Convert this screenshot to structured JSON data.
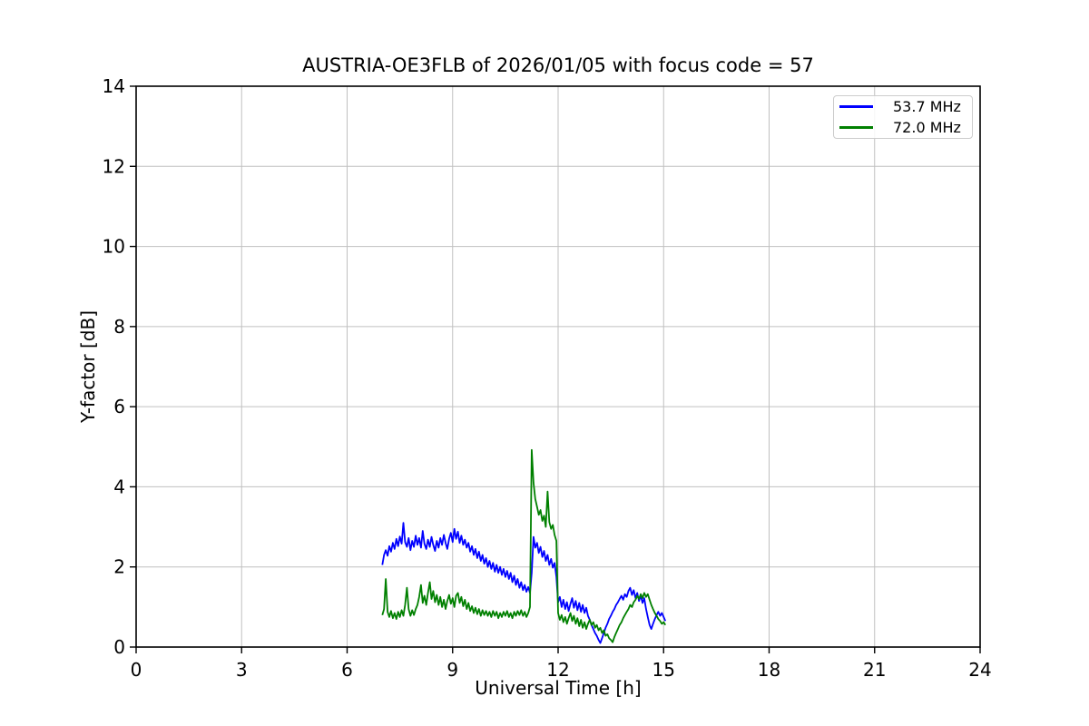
{
  "chart_data": {
    "type": "line",
    "title": "AUSTRIA-OE3FLB of 2026/01/05 with focus code = 57",
    "xlabel": "Universal Time [h]",
    "ylabel": "Y-factor [dB]",
    "xlim": [
      0,
      24
    ],
    "ylim": [
      0,
      14
    ],
    "xticks": [
      0,
      3,
      6,
      9,
      12,
      15,
      18,
      21,
      24
    ],
    "yticks": [
      0,
      2,
      4,
      6,
      8,
      10,
      12,
      14
    ],
    "grid": true,
    "grid_color": "#c0c0c0",
    "legend_position": "upper right",
    "x_start": 7.0,
    "x_step": 0.05,
    "series": [
      {
        "name": "53.7 MHz",
        "color": "#0000ff",
        "values": [
          2.05,
          2.3,
          2.42,
          2.28,
          2.52,
          2.38,
          2.6,
          2.45,
          2.7,
          2.52,
          2.76,
          2.58,
          3.1,
          2.62,
          2.5,
          2.72,
          2.42,
          2.65,
          2.5,
          2.78,
          2.55,
          2.72,
          2.48,
          2.9,
          2.58,
          2.45,
          2.68,
          2.5,
          2.75,
          2.55,
          2.4,
          2.65,
          2.48,
          2.72,
          2.55,
          2.8,
          2.6,
          2.45,
          2.7,
          2.85,
          2.62,
          2.95,
          2.7,
          2.88,
          2.6,
          2.78,
          2.55,
          2.68,
          2.48,
          2.6,
          2.38,
          2.52,
          2.3,
          2.45,
          2.22,
          2.38,
          2.15,
          2.3,
          2.08,
          2.22,
          2.0,
          2.15,
          1.95,
          2.1,
          1.88,
          2.05,
          1.85,
          2.0,
          1.8,
          1.95,
          1.75,
          1.9,
          1.7,
          1.85,
          1.62,
          1.78,
          1.55,
          1.7,
          1.48,
          1.62,
          1.42,
          1.55,
          1.38,
          1.5,
          1.35,
          1.85,
          2.75,
          2.48,
          2.6,
          2.35,
          2.5,
          2.25,
          2.4,
          2.15,
          2.3,
          2.05,
          2.2,
          1.98,
          2.1,
          1.75,
          1.12,
          1.25,
          1.0,
          1.18,
          0.95,
          1.12,
          0.9,
          1.08,
          1.22,
          0.98,
          1.15,
          0.92,
          1.1,
          0.88,
          1.05,
          0.85,
          0.98,
          0.78,
          0.68,
          0.55,
          0.45,
          0.35,
          0.28,
          0.18,
          0.1,
          0.22,
          0.35,
          0.48,
          0.58,
          0.7,
          0.78,
          0.88,
          0.95,
          1.05,
          1.12,
          1.2,
          1.28,
          1.18,
          1.32,
          1.25,
          1.4,
          1.48,
          1.3,
          1.42,
          1.22,
          1.35,
          1.15,
          1.28,
          1.1,
          1.22,
          0.95,
          0.75,
          0.55,
          0.45,
          0.58,
          0.7,
          0.8,
          0.88,
          0.78,
          0.85,
          0.75,
          0.65
        ]
      },
      {
        "name": "72.0 MHz",
        "color": "#008000",
        "values": [
          0.8,
          0.95,
          1.7,
          0.88,
          0.75,
          0.9,
          0.72,
          0.85,
          0.7,
          0.88,
          0.75,
          0.92,
          0.78,
          1.05,
          1.48,
          0.95,
          0.78,
          0.92,
          0.8,
          0.95,
          1.05,
          1.25,
          1.55,
          1.1,
          1.28,
          1.05,
          1.35,
          1.62,
          1.2,
          1.4,
          1.12,
          1.3,
          1.05,
          1.25,
          1.0,
          1.18,
          0.95,
          1.15,
          1.3,
          1.08,
          1.22,
          1.0,
          1.28,
          1.35,
          1.1,
          1.25,
          1.02,
          1.18,
          0.95,
          1.1,
          0.9,
          1.02,
          0.85,
          0.98,
          0.82,
          0.95,
          0.78,
          0.92,
          0.8,
          0.9,
          0.78,
          0.88,
          0.75,
          0.9,
          0.78,
          0.88,
          0.72,
          0.85,
          0.75,
          0.88,
          0.78,
          0.9,
          0.75,
          0.85,
          0.72,
          0.88,
          0.78,
          0.9,
          0.8,
          0.92,
          0.78,
          0.88,
          0.75,
          0.85,
          1.0,
          4.92,
          4.1,
          3.7,
          3.5,
          3.3,
          3.42,
          3.15,
          3.28,
          3.0,
          3.88,
          3.12,
          2.95,
          3.05,
          2.8,
          2.65,
          0.85,
          0.68,
          0.8,
          0.62,
          0.75,
          0.58,
          0.72,
          0.85,
          0.65,
          0.78,
          0.58,
          0.72,
          0.52,
          0.68,
          0.48,
          0.62,
          0.45,
          0.58,
          0.68,
          0.55,
          0.62,
          0.48,
          0.55,
          0.42,
          0.48,
          0.35,
          0.42,
          0.28,
          0.32,
          0.22,
          0.18,
          0.12,
          0.25,
          0.35,
          0.45,
          0.55,
          0.62,
          0.72,
          0.8,
          0.88,
          0.95,
          1.05,
          1.0,
          1.12,
          1.18,
          1.28,
          1.2,
          1.32,
          1.22,
          1.35,
          1.25,
          1.32,
          1.18,
          1.05,
          0.95,
          0.85,
          0.78,
          0.7,
          0.65,
          0.58,
          0.62,
          0.55
        ]
      }
    ]
  }
}
